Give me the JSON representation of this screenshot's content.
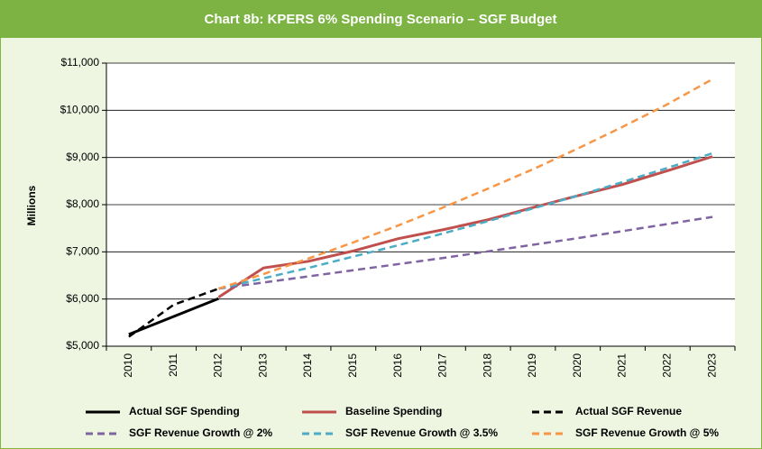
{
  "chart_data": {
    "type": "line",
    "title": "Chart 8b: KPERS 6% Spending Scenario – SGF Budget",
    "y_label": "Millions",
    "categories": [
      "2010",
      "2011",
      "2012",
      "2013",
      "2014",
      "2015",
      "2016",
      "2017",
      "2018",
      "2019",
      "2020",
      "2021",
      "2022",
      "2023"
    ],
    "ylim": [
      5000,
      11000
    ],
    "yticks": [
      {
        "value": 5000,
        "label": "$5,000"
      },
      {
        "value": 6000,
        "label": "$6,000"
      },
      {
        "value": 7000,
        "label": "$7,000"
      },
      {
        "value": 8000,
        "label": "$8,000"
      },
      {
        "value": 9000,
        "label": "$9,000"
      },
      {
        "value": 10000,
        "label": "$10,000"
      },
      {
        "value": 11000,
        "label": "$11,000"
      }
    ],
    "grid": true,
    "series": [
      {
        "name": "Actual SGF Spending",
        "color": "#000000",
        "dashed": false,
        "values": [
          5250,
          5630,
          6010,
          null,
          null,
          null,
          null,
          null,
          null,
          null,
          null,
          null,
          null,
          null
        ]
      },
      {
        "name": "Baseline Spending",
        "color": "#c0504d",
        "dashed": false,
        "values": [
          null,
          null,
          6040,
          6660,
          6800,
          7020,
          7280,
          7470,
          7680,
          7940,
          8190,
          8430,
          8720,
          9020
        ]
      },
      {
        "name": "Actual SGF Revenue",
        "color": "#000000",
        "dashed": true,
        "values": [
          5200,
          5880,
          6220,
          null,
          null,
          null,
          null,
          null,
          null,
          null,
          null,
          null,
          null,
          null
        ]
      },
      {
        "name": "SGF Revenue Growth @ 2%",
        "color": "#8064a2",
        "dashed": true,
        "values": [
          null,
          null,
          6220,
          6350,
          6480,
          6610,
          6740,
          6870,
          7010,
          7150,
          7290,
          7440,
          7590,
          7740
        ]
      },
      {
        "name": "SGF Revenue Growth @ 3.5%",
        "color": "#4bacc6",
        "dashed": true,
        "values": [
          null,
          null,
          6220,
          6440,
          6660,
          6900,
          7140,
          7390,
          7650,
          7920,
          8190,
          8480,
          8780,
          9090
        ]
      },
      {
        "name": "SGF Revenue Growth @ 5%",
        "color": "#f79646",
        "dashed": true,
        "values": [
          null,
          null,
          6220,
          6530,
          6860,
          7200,
          7560,
          7940,
          8340,
          8750,
          9190,
          9650,
          10130,
          10660
        ]
      }
    ]
  }
}
